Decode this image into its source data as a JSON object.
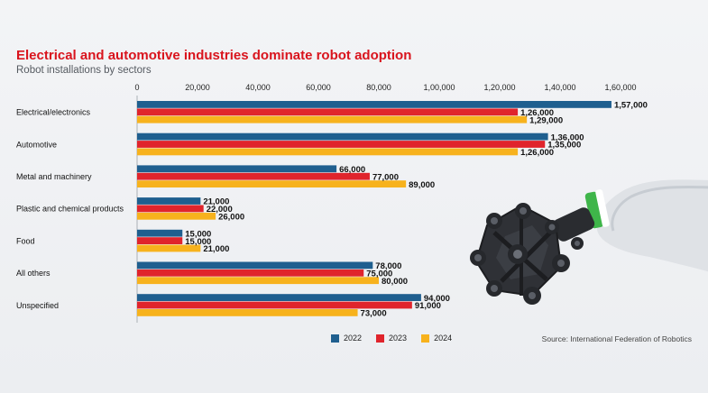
{
  "header": {
    "title": "Electrical and automotive industries dominate robot adoption",
    "subtitle": "Robot installations by sectors"
  },
  "source": "Source: International Federation of Robotics",
  "colors": {
    "s2022": "#1f5f8f",
    "s2023": "#e0242c",
    "s2024": "#f7b21d",
    "robot": "#2a2c30",
    "accent": "#3fb54a"
  },
  "chart_data": {
    "type": "bar",
    "orientation": "horizontal",
    "title": "Electrical and automotive industries dominate robot adoption",
    "subtitle": "Robot installations by sectors",
    "categories": [
      "Electrical/electronics",
      "Automotive",
      "Metal and machinery",
      "Plastic and chemical products",
      "Food",
      "All others",
      "Unspecified"
    ],
    "series": [
      {
        "name": "2022",
        "color": "#1f5f8f",
        "values": [
          157000,
          136000,
          66000,
          21000,
          15000,
          78000,
          94000
        ],
        "labels": [
          "1,57,000",
          "1,36,000",
          "66,000",
          "21,000",
          "15,000",
          "78,000",
          "94,000"
        ]
      },
      {
        "name": "2023",
        "color": "#e0242c",
        "values": [
          126000,
          135000,
          77000,
          22000,
          15000,
          75000,
          91000
        ],
        "labels": [
          "1,26,000",
          "1,35,000",
          "77,000",
          "22,000",
          "15,000",
          "75,000",
          "91,000"
        ]
      },
      {
        "name": "2024",
        "color": "#f7b21d",
        "values": [
          129000,
          126000,
          89000,
          26000,
          21000,
          80000,
          73000
        ],
        "labels": [
          "1,29,000",
          "1,26,000",
          "89,000",
          "26,000",
          "21,000",
          "80,000",
          "73,000"
        ]
      }
    ],
    "xlim": [
      0,
      160000
    ],
    "ticks": [
      0,
      20000,
      40000,
      60000,
      80000,
      100000,
      120000,
      140000,
      160000
    ],
    "tick_labels": [
      "0",
      "20,000",
      "40,000",
      "60,000",
      "80,000",
      "1,00,000",
      "1,20,000",
      "1,40,000",
      "1,60,000"
    ],
    "legend": {
      "position": "bottom",
      "entries": [
        "2022",
        "2023",
        "2024"
      ]
    },
    "grid": false
  }
}
